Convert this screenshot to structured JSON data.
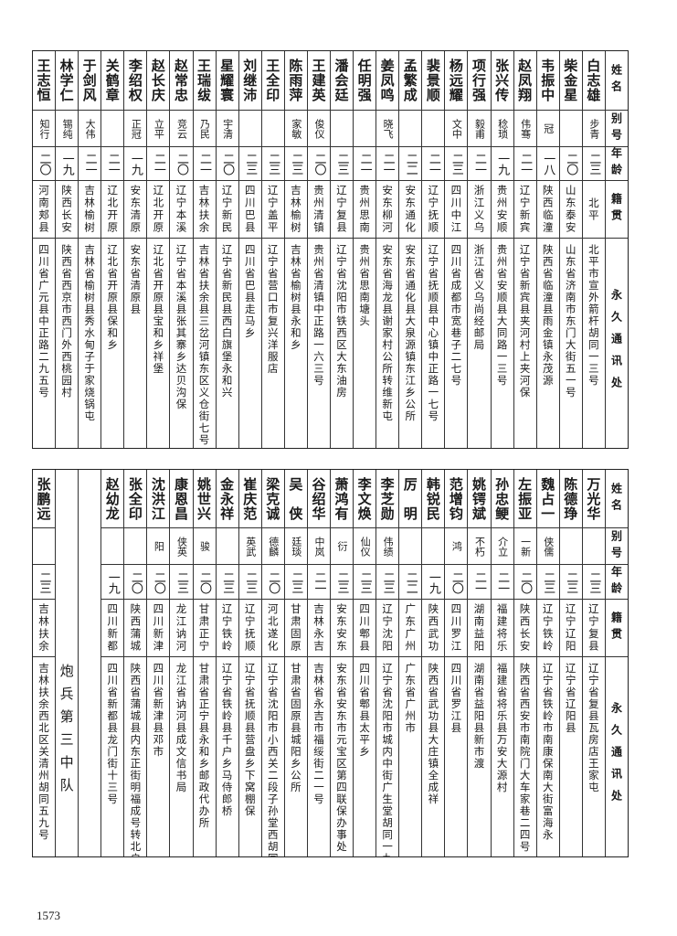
{
  "headers": {
    "name": "姓名",
    "alias": "别号",
    "age": "年龄",
    "origin": "籍贯",
    "address": "永久通讯处"
  },
  "top_table": [
    {
      "name": "白志雄",
      "alias": "步青",
      "age": "二三",
      "origin": "北平",
      "address": "北平市宣外箭杆胡同一三号"
    },
    {
      "name": "柴金星",
      "alias": "",
      "age": "二〇",
      "origin": "山东泰安",
      "address": "山东省济南市东门大街五一号"
    },
    {
      "name": "韦振中",
      "alias": "冠",
      "age": "一八",
      "origin": "陕西临潼",
      "address": "陕西省临潼县雨金镇永茂源"
    },
    {
      "name": "赵凤翔",
      "alias": "伟骞",
      "age": "二一",
      "origin": "辽宁新宾",
      "address": "辽宁省新宾县夹河村上夹河保"
    },
    {
      "name": "张兴传",
      "alias": "稔琐",
      "age": "一九",
      "origin": "贵州安顺",
      "address": "贵州省安顺县大同路一三号"
    },
    {
      "name": "项行强",
      "alias": "毅甫",
      "age": "二一",
      "origin": "浙江义乌",
      "address": "浙江省义乌尚经邮局"
    },
    {
      "name": "杨远耀",
      "alias": "文中",
      "age": "二三",
      "origin": "四川中江",
      "address": "四川省成都市宽巷子二七号"
    },
    {
      "name": "裴景顺",
      "alias": "",
      "age": "二一",
      "origin": "辽宁抚顺",
      "address": "辽宁省抚顺县中心镇中正路一七号"
    },
    {
      "name": "孟繁成",
      "alias": "",
      "age": "二二",
      "origin": "安东通化",
      "address": "安东省通化县大泉源镇东江乡公所"
    },
    {
      "name": "姜凤鸣",
      "alias": "晓飞",
      "age": "二一",
      "origin": "安东柳河",
      "address": "安东省海龙县谢家村公所转维新屯"
    },
    {
      "name": "任明强",
      "alias": "",
      "age": "二一",
      "origin": "贵州思南",
      "address": "贵州省思南塘头"
    },
    {
      "name": "潘会廷",
      "alias": "",
      "age": "二三",
      "origin": "辽宁复县",
      "address": "辽宁省沈阳市铁西区大东油房"
    },
    {
      "name": "王建英",
      "alias": "俊仪",
      "age": "二〇",
      "origin": "贵州清镇",
      "address": "贵州省清镇中正路一六三号"
    },
    {
      "name": "陈雨萍",
      "alias": "家敏",
      "age": "二三",
      "origin": "吉林榆树",
      "address": "吉林省榆树县永和乡"
    },
    {
      "name": "王全印",
      "alias": "",
      "age": "二三",
      "origin": "辽宁盖平",
      "address": "辽宁省营口市复兴洋服店"
    },
    {
      "name": "刘继沛",
      "alias": "",
      "age": "二三",
      "origin": "四川巴县",
      "address": "四川省巴县走马乡"
    },
    {
      "name": "星耀寰",
      "alias": "宇清",
      "age": "二〇",
      "origin": "辽宁新民",
      "address": "辽宁省新民县西白旗堡永和兴"
    },
    {
      "name": "王瑞绂",
      "alias": "乃民",
      "age": "二一",
      "origin": "吉林扶余",
      "address": "吉林省扶余县三岔河镇东区义仓街七号"
    },
    {
      "name": "赵常忠",
      "alias": "竞云",
      "age": "二〇",
      "origin": "辽宁本溪",
      "address": "辽宁省本溪县张其寨乡达贝沟保"
    },
    {
      "name": "赵长庆",
      "alias": "立平",
      "age": "二一",
      "origin": "辽北开原",
      "address": "辽北省开原县宝和乡祥堡"
    },
    {
      "name": "李绍权",
      "alias": "正冠",
      "age": "一九",
      "origin": "安东清原",
      "address": "安东省清原县"
    },
    {
      "name": "关鹤章",
      "alias": "",
      "age": "二一",
      "origin": "辽北开原",
      "address": "辽北省开原县保和乡"
    },
    {
      "name": "于剑风",
      "alias": "大伟",
      "age": "二一",
      "origin": "吉林榆树",
      "address": "吉林省榆树县秀水甸子于家烧锅屯"
    },
    {
      "name": "林学仁",
      "alias": "锡纯",
      "age": "一九",
      "origin": "陕西长安",
      "address": "陕西省西京市西门外西桃园村"
    },
    {
      "name": "王志恒",
      "alias": "知行",
      "age": "二〇",
      "origin": "河南郏县",
      "address": "四川省广元县中正路二九五号"
    }
  ],
  "bottom_table": [
    {
      "name": "万光华",
      "alias": "",
      "age": "二三",
      "origin": "辽宁复县",
      "address": "辽宁省复县瓦房店王家屯"
    },
    {
      "name": "陈德琤",
      "alias": "",
      "age": "二三",
      "origin": "辽宁辽阳",
      "address": "辽宁省辽阳县"
    },
    {
      "name": "魏占一",
      "alias": "侠儒",
      "age": "二三",
      "origin": "辽宁铁岭",
      "address": "辽宁省铁岭市南康保南大街富海永"
    },
    {
      "name": "左振亚",
      "alias": "一新",
      "age": "二〇",
      "origin": "陕西长安",
      "address": "陕西省西安市南院门大车家巷二四号"
    },
    {
      "name": "孙忠鲠",
      "alias": "介立",
      "age": "二一",
      "origin": "福建将乐",
      "address": "福建省将乐县万安大源村"
    },
    {
      "name": "姚锷斌",
      "alias": "不朽",
      "age": "二一",
      "origin": "湖南益阳",
      "address": "湖南省益阳县新市渡"
    },
    {
      "name": "范增钧",
      "alias": "鸿",
      "age": "二〇",
      "origin": "四川罗江",
      "address": "四川省罗江县"
    },
    {
      "name": "韩锐民",
      "alias": "",
      "age": "一九",
      "origin": "陕西武功",
      "address": "陕西省武功县大庄镇全成祥"
    },
    {
      "name": "厉　明",
      "alias": "",
      "age": "二二",
      "origin": "广东广州",
      "address": "广东省广州市"
    },
    {
      "name": "李芝勋",
      "alias": "伟绩",
      "age": "二三",
      "origin": "辽宁沈阳",
      "address": "辽宁省沈阳市城内中街广生堂胡同一九号"
    },
    {
      "name": "李文焕",
      "alias": "仙仪",
      "age": "二三",
      "origin": "四川郫县",
      "address": "四川省郫县太平乡"
    },
    {
      "name": "萧鸿有",
      "alias": "衍",
      "age": "二三",
      "origin": "安东安东",
      "address": "安东省安东市元宝区第四联保办事处"
    },
    {
      "name": "谷绍华",
      "alias": "中岚",
      "age": "二一",
      "origin": "吉林永吉",
      "address": "吉林省永吉市福绥街二一号"
    },
    {
      "name": "吴　侠",
      "alias": "廷琰",
      "age": "二三",
      "origin": "甘肃固原",
      "address": "甘肃省固原县城阳乡公所"
    },
    {
      "name": "梁克诚",
      "alias": "德麟",
      "age": "二〇",
      "origin": "河北遂化",
      "address": "辽宁省沈阳市小西关二段子孙堂西胡同"
    },
    {
      "name": "崔庆范",
      "alias": "英武",
      "age": "二三",
      "origin": "辽宁抚顺",
      "address": "辽宁省抚顺县营盘乡下窝棚保"
    },
    {
      "name": "金永祥",
      "alias": "",
      "age": "二三",
      "origin": "辽宁铁岭",
      "address": "辽宁省铁岭县千户乡马侍郎桥"
    },
    {
      "name": "姚世兴",
      "alias": "骏",
      "age": "二〇",
      "origin": "甘肃正宁",
      "address": "甘肃省正宁县永和乡邮政代办所"
    },
    {
      "name": "康恩昌",
      "alias": "侠英",
      "age": "二三",
      "origin": "龙江讷河",
      "address": "龙江省讷河县成文信书局"
    },
    {
      "name": "沈洪江",
      "alias": "阳",
      "age": "二〇",
      "origin": "四川新津",
      "address": "四川省新津县邓市"
    },
    {
      "name": "张全印",
      "alias": "",
      "age": "二〇",
      "origin": "陕西蒲城",
      "address": "陕西省蒲城县内东正街明福成号转北户安村"
    },
    {
      "name": "赵幼龙",
      "alias": "",
      "age": "一九",
      "origin": "四川新都",
      "address": "四川省新都县龙门街十三号"
    }
  ],
  "unit_label": "炮兵第三中队",
  "unit_members": [
    {
      "name": "张鹏远",
      "alias": "",
      "age": "二三",
      "origin": "吉林扶余",
      "address": "吉林扶余西北区关清州胡同五九号"
    }
  ],
  "page_number": "1573"
}
